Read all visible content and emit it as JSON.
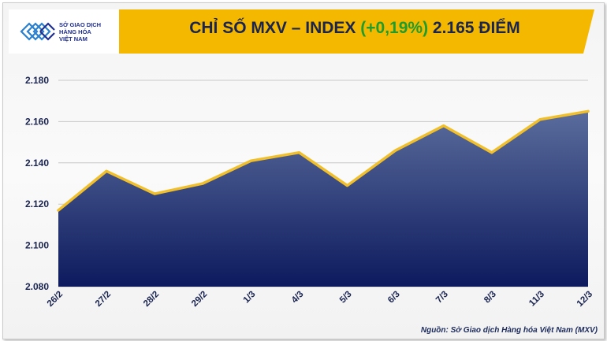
{
  "logo": {
    "lines": [
      "SỞ GIAO DỊCH",
      "HÀNG HÓA",
      "VIỆT NAM"
    ]
  },
  "title": {
    "prefix": "CHỈ SỐ MXV – INDEX",
    "change": "(+0,19%)",
    "value": "2.165 ĐIỂM"
  },
  "colors": {
    "accent": "#f5b800",
    "line": "#f0bf2a",
    "area_top": "#5a6c9c",
    "area_bottom": "#0d1a5e",
    "positive": "#1e9c2e"
  },
  "chart_data": {
    "type": "area",
    "categories": [
      "26/2",
      "27/2",
      "28/2",
      "29/2",
      "1/3",
      "4/3",
      "5/3",
      "6/3",
      "7/3",
      "8/3",
      "11/3",
      "12/3"
    ],
    "series": [
      {
        "values": [
          2117,
          2136,
          2125,
          2130,
          2141,
          2145,
          2129,
          2146,
          2158,
          2145,
          2161,
          2165
        ]
      }
    ],
    "yticks": [
      "2.080",
      "2.100",
      "2.120",
      "2.140",
      "2.160",
      "2.180"
    ],
    "ytick_values": [
      2080,
      2100,
      2120,
      2140,
      2160,
      2180
    ],
    "ylim": [
      2080,
      2180
    ],
    "grid": true,
    "legend": "none"
  },
  "source": "Nguồn: Sở Giao dịch Hàng hóa Việt Nam (MXV)"
}
